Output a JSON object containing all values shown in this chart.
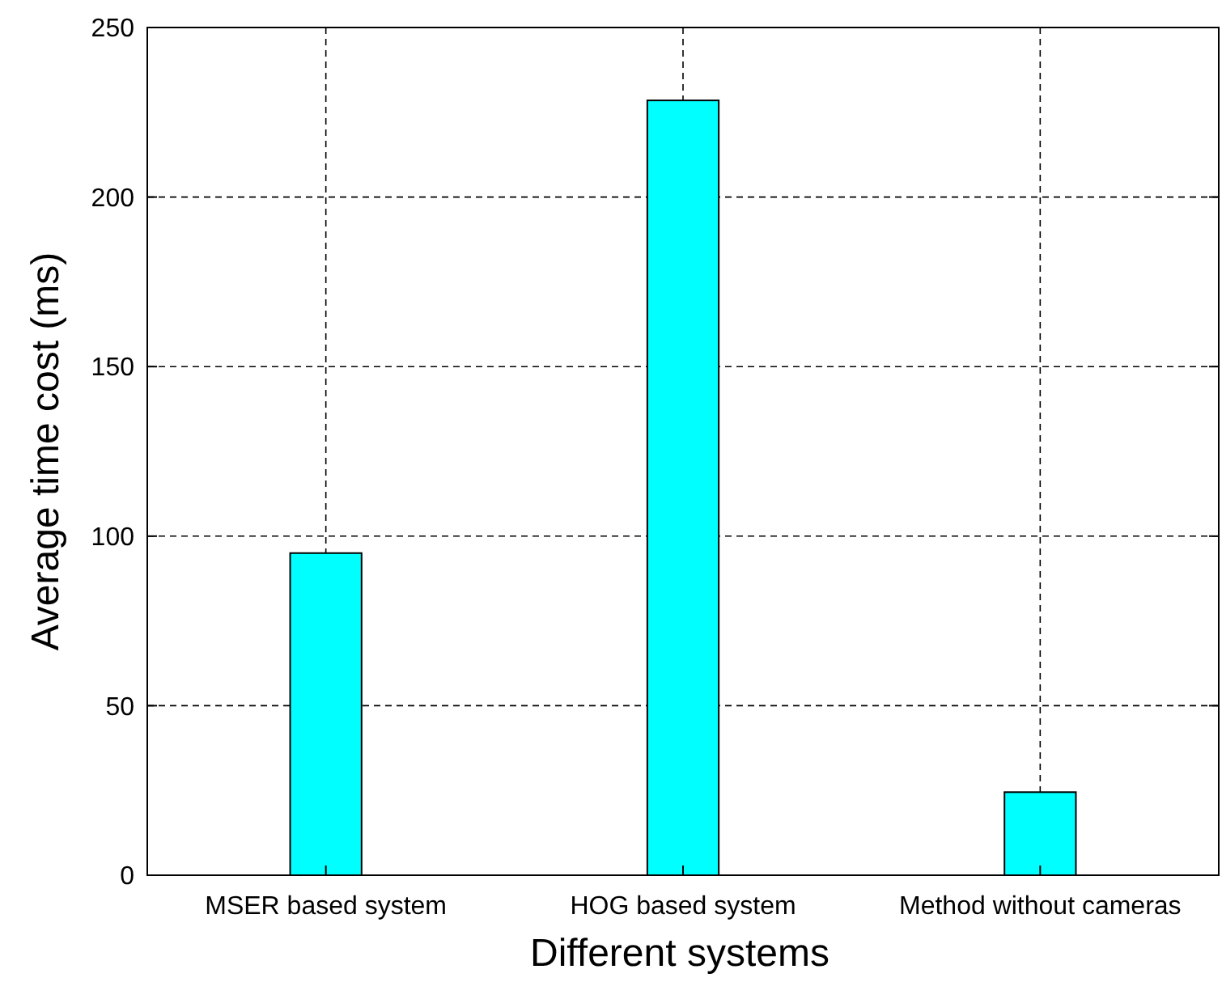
{
  "chart_data": {
    "type": "bar",
    "xlabel": "Different systems",
    "ylabel": "Average time cost (ms)",
    "categories": [
      "MSER based system",
      "HOG based system",
      "Method without cameras"
    ],
    "values": [
      95,
      228.5,
      24.5
    ],
    "color": "#00ffff",
    "ylim": [
      0,
      250
    ],
    "yticks": [
      0,
      50,
      100,
      150,
      200,
      250
    ],
    "grid": true
  }
}
